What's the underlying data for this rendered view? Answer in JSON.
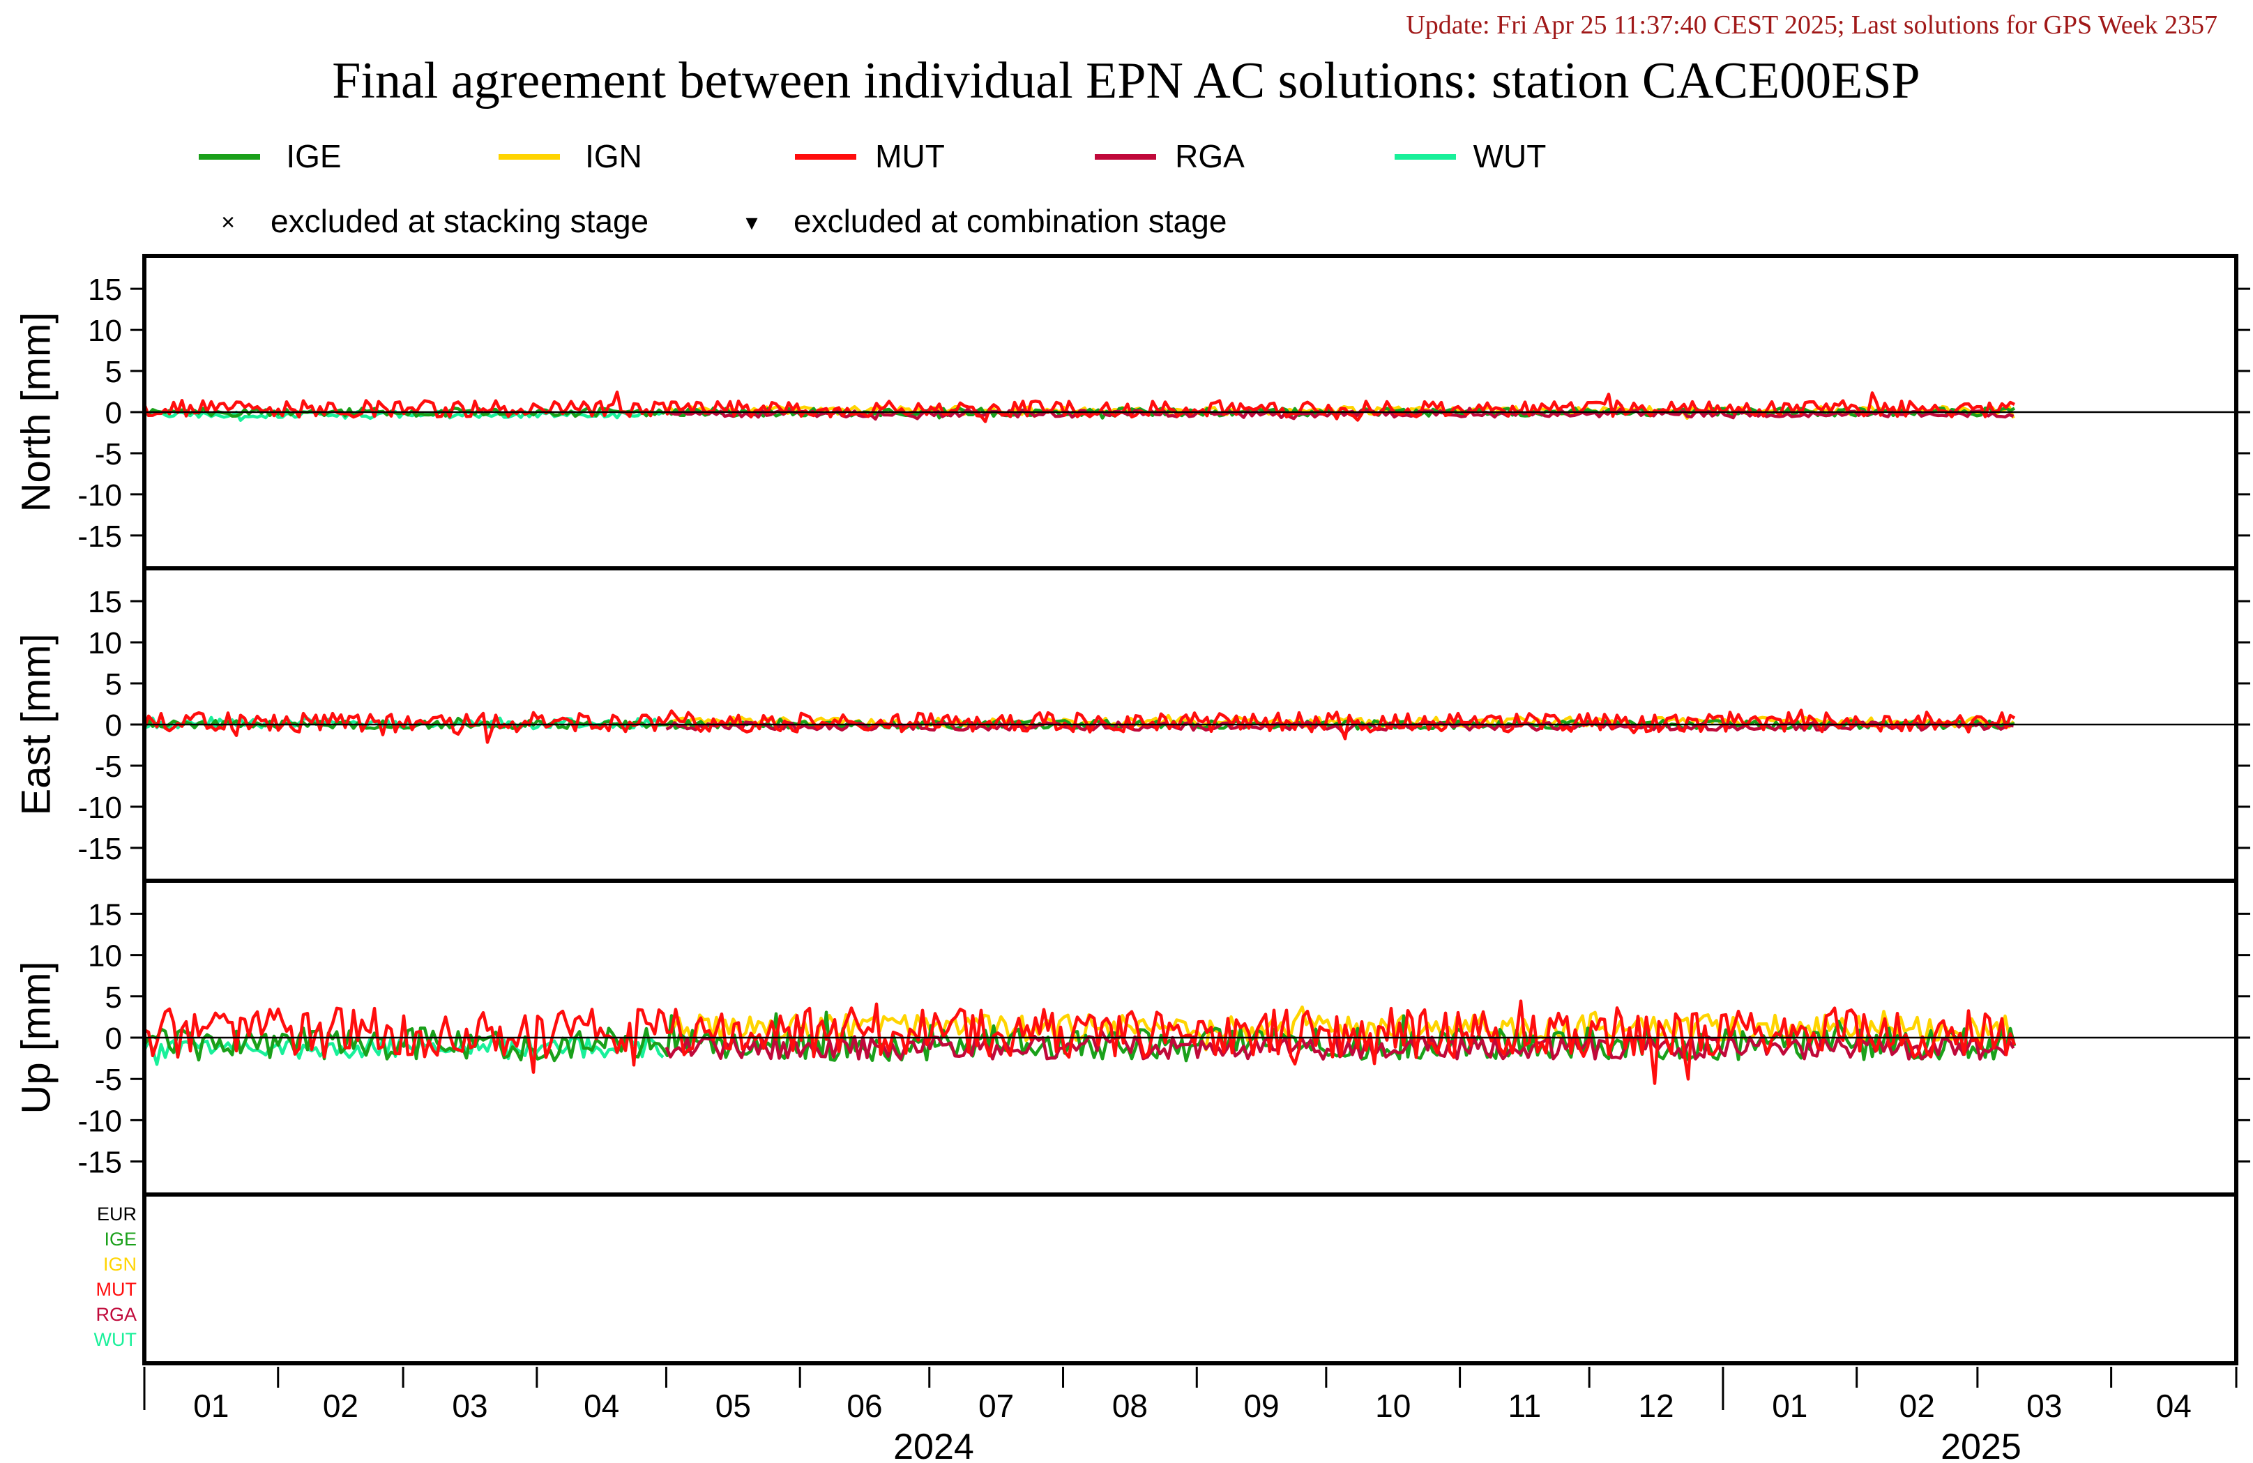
{
  "update_text": "Update: Fri Apr 25 11:37:40 CEST 2025; Last solutions for GPS Week 2357",
  "chart_data": {
    "type": "line",
    "title": "Final agreement between individual EPN AC solutions: station CACE00ESP",
    "legend": {
      "series": [
        {
          "name": "IGE",
          "color": "#1aa01a"
        },
        {
          "name": "IGN",
          "color": "#ffd400"
        },
        {
          "name": "MUT",
          "color": "#ff0d0d"
        },
        {
          "name": "RGA",
          "color": "#c0093a"
        },
        {
          "name": "WUT",
          "color": "#19f09a"
        }
      ],
      "markers": [
        {
          "symbol": "×",
          "label": "excluded at stacking stage"
        },
        {
          "symbol": "▾",
          "label": "excluded at combination stage"
        }
      ]
    },
    "x_axis": {
      "start": "2024-01-01",
      "end": "2025-04-30",
      "month_labels": [
        "01",
        "02",
        "03",
        "04",
        "05",
        "06",
        "07",
        "08",
        "09",
        "10",
        "11",
        "12",
        "01",
        "02",
        "03",
        "04"
      ],
      "year_labels": [
        "2024",
        "2025"
      ]
    },
    "panels": [
      {
        "ylabel": "North [mm]",
        "ylim": [
          -19,
          19
        ],
        "yticks": [
          15,
          10,
          5,
          0,
          -5,
          -10,
          -15
        ],
        "series_stats": {
          "IGE": {
            "mean": 0.0,
            "amplitude": 0.5,
            "range": [
              "2024-01-01",
              "2025-03-10"
            ]
          },
          "IGN": {
            "mean": 0.2,
            "amplitude": 0.5,
            "range": [
              "2024-05-01",
              "2025-03-10"
            ]
          },
          "MUT": {
            "mean": 0.4,
            "amplitude": 1.0,
            "range": [
              "2024-01-01",
              "2025-03-10"
            ]
          },
          "RGA": {
            "mean": -0.2,
            "amplitude": 0.4,
            "range": [
              "2024-05-01",
              "2025-03-10"
            ]
          },
          "WUT": {
            "mean": -0.3,
            "amplitude": 0.4,
            "range": [
              "2024-01-01",
              "2024-05-01"
            ]
          }
        }
      },
      {
        "ylabel": "East [mm]",
        "ylim": [
          -19,
          19
        ],
        "yticks": [
          15,
          10,
          5,
          0,
          -5,
          -10,
          -15
        ],
        "series_stats": {
          "IGE": {
            "mean": 0.0,
            "amplitude": 0.5,
            "range": [
              "2024-01-01",
              "2025-03-10"
            ]
          },
          "IGN": {
            "mean": 0.3,
            "amplitude": 0.6,
            "range": [
              "2024-05-01",
              "2025-03-10"
            ]
          },
          "MUT": {
            "mean": 0.3,
            "amplitude": 1.2,
            "range": [
              "2024-01-01",
              "2025-03-10"
            ]
          },
          "RGA": {
            "mean": -0.2,
            "amplitude": 0.5,
            "range": [
              "2024-05-01",
              "2025-03-10"
            ]
          },
          "WUT": {
            "mean": 0.2,
            "amplitude": 0.6,
            "range": [
              "2024-01-01",
              "2024-05-01"
            ]
          }
        }
      },
      {
        "ylabel": "Up [mm]",
        "ylim": [
          -19,
          19
        ],
        "yticks": [
          15,
          10,
          5,
          0,
          -5,
          -10,
          -15
        ],
        "series_stats": {
          "IGE": {
            "mean": -0.8,
            "amplitude": 2.0,
            "range": [
              "2024-01-01",
              "2025-03-10"
            ]
          },
          "IGN": {
            "mean": 1.2,
            "amplitude": 1.6,
            "range": [
              "2024-05-01",
              "2025-03-10"
            ]
          },
          "MUT": {
            "mean": 0.6,
            "amplitude": 3.0,
            "range": [
              "2024-01-01",
              "2025-03-10"
            ]
          },
          "RGA": {
            "mean": -1.2,
            "amplitude": 1.4,
            "range": [
              "2024-05-01",
              "2025-03-10"
            ]
          },
          "WUT": {
            "mean": -1.3,
            "amplitude": 1.3,
            "range": [
              "2024-01-01",
              "2024-05-01"
            ]
          }
        }
      }
    ],
    "exclusion_panel": {
      "labels": [
        {
          "name": "EUR",
          "color": "#000000"
        },
        {
          "name": "IGE",
          "color": "#1aa01a"
        },
        {
          "name": "IGN",
          "color": "#ffd400"
        },
        {
          "name": "MUT",
          "color": "#ff0d0d"
        },
        {
          "name": "RGA",
          "color": "#c0093a"
        },
        {
          "name": "WUT",
          "color": "#19f09a"
        }
      ]
    }
  }
}
